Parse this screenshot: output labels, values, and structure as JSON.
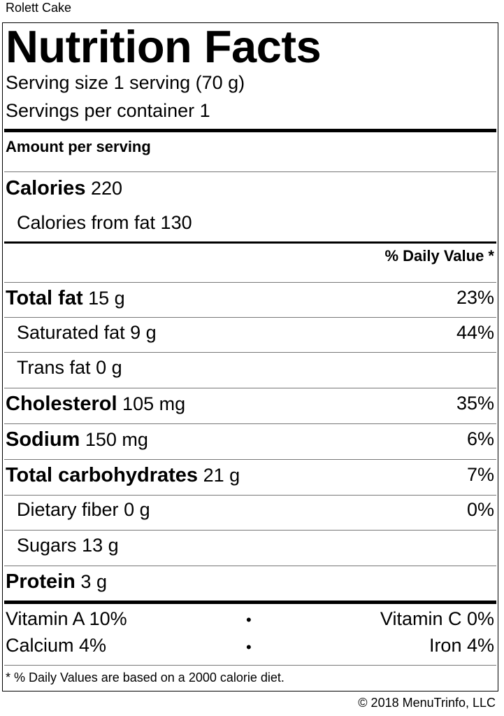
{
  "product_name": "Rolett Cake",
  "title": "Nutrition Facts",
  "serving_size": "Serving size 1 serving (70 g)",
  "servings_per_container": "Servings per container 1",
  "amount_per_serving": "Amount per serving",
  "calories": {
    "label": "Calories",
    "value": "220"
  },
  "calories_from_fat": "Calories from fat 130",
  "daily_value_header": "% Daily Value *",
  "nutrients": [
    {
      "name": "Total fat",
      "amount": "15 g",
      "dv": "23%"
    },
    {
      "name": "Saturated fat",
      "amount": "9 g",
      "dv": "44%"
    },
    {
      "name": "Trans fat",
      "amount": "0 g",
      "dv": ""
    },
    {
      "name": "Cholesterol",
      "amount": "105 mg",
      "dv": "35%"
    },
    {
      "name": "Sodium",
      "amount": "150 mg",
      "dv": "6%"
    },
    {
      "name": "Total carbohydrates",
      "amount": "21 g",
      "dv": "7%"
    },
    {
      "name": "Dietary fiber",
      "amount": "0 g",
      "dv": "0%"
    },
    {
      "name": "Sugars",
      "amount": "13 g",
      "dv": ""
    },
    {
      "name": "Protein",
      "amount": "3 g",
      "dv": ""
    }
  ],
  "vitamins": {
    "vitamin_a": "Vitamin A 10%",
    "vitamin_c": "Vitamin C 0%",
    "calcium": "Calcium 4%",
    "iron": "Iron 4%",
    "bullet": "•"
  },
  "footnote": "* % Daily Values are based on a 2000 calorie diet.",
  "copyright": "© 2018 MenuTrinfo, LLC"
}
